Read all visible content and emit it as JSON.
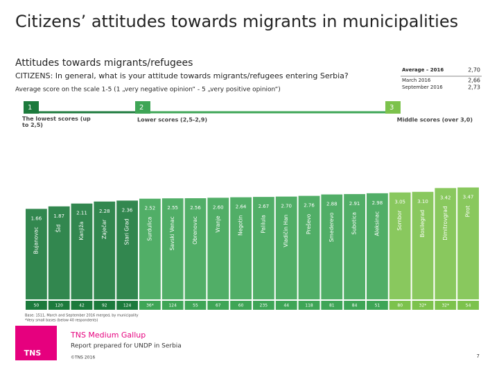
{
  "header": {
    "title": "Citizens’ attitudes towards migrants in municipalities",
    "subtitle": "Attitudes towards migrants/refugees",
    "question": "CITIZENS: In general, what is your attitude towards migrants/refugees entering Serbia?",
    "scale_note": "Average score on the scale 1-5 (1 „very negative opinion“ - 5 „very positive opinion“)"
  },
  "averages": [
    [
      "Average – 2016",
      "2,70"
    ],
    [
      "March 2016",
      "2,66"
    ],
    [
      "September 2016",
      "2,73"
    ]
  ],
  "groups": [
    {
      "number": "1",
      "label": "The lowest scores (up to 2,5)"
    },
    {
      "number": "2",
      "label": "Lower scores (2,5-2,9)"
    },
    {
      "number": "3",
      "label": "Middle scores (over 3,0)"
    }
  ],
  "chart_data": {
    "type": "bar",
    "categories": [
      "Bujanovac",
      "Šid",
      "Kanjiža",
      "Zaječar",
      "Stari Grad",
      "Surdulica",
      "Savski Venac",
      "Obrenovac",
      "Vranje",
      "Negotin",
      "Palilula",
      "Vladičin Han",
      "Preševo",
      "Smederevo",
      "Subotica",
      "Aleksinac",
      "Sombor",
      "Bosilegrad",
      "Dimitrovgrad",
      "Pirot"
    ],
    "values": [
      1.66,
      1.87,
      2.11,
      2.28,
      2.36,
      2.52,
      2.55,
      2.56,
      2.6,
      2.64,
      2.67,
      2.7,
      2.76,
      2.88,
      2.91,
      2.98,
      3.05,
      3.1,
      3.42,
      3.47
    ],
    "value_labels": [
      "1.66",
      "1.87",
      "2.11",
      "2.28",
      "2.36",
      "2.52",
      "2.55",
      "2.56",
      "2.60",
      "2.64",
      "2.67",
      "2.70",
      "2.76",
      "2.88",
      "2.91",
      "2.98",
      "3.05",
      "3.10",
      "3.42",
      "3.47"
    ],
    "colors": [
      "#1c7a3c",
      "#1c7a3c",
      "#1c7a3c",
      "#1c7a3c",
      "#1c7a3c",
      "#3ea556",
      "#3ea556",
      "#3ea556",
      "#3ea556",
      "#3ea556",
      "#3ea556",
      "#3ea556",
      "#3ea556",
      "#3ea556",
      "#3ea556",
      "#3ea556",
      "#7cc24c",
      "#7cc24c",
      "#7cc24c",
      "#7cc24c"
    ],
    "bases": [
      "50",
      "120",
      "42",
      "92",
      "124",
      "36*",
      "124",
      "55",
      "67",
      "60",
      "235",
      "44",
      "118",
      "81",
      "84",
      "51",
      "80",
      "32*",
      "32*",
      "54"
    ],
    "ylim": [
      -6,
      3.5
    ]
  },
  "footer": {
    "base_note": "Base: 1511, March and September 2016 merged, by municipality",
    "small_note": "*Very small bases (below 40 respondents)",
    "logo": "TNS",
    "company": "TNS Medium Gallup",
    "report": "Report prepared for UNDP in Serbia",
    "copyright": "©TNS 2016",
    "page": "7"
  }
}
